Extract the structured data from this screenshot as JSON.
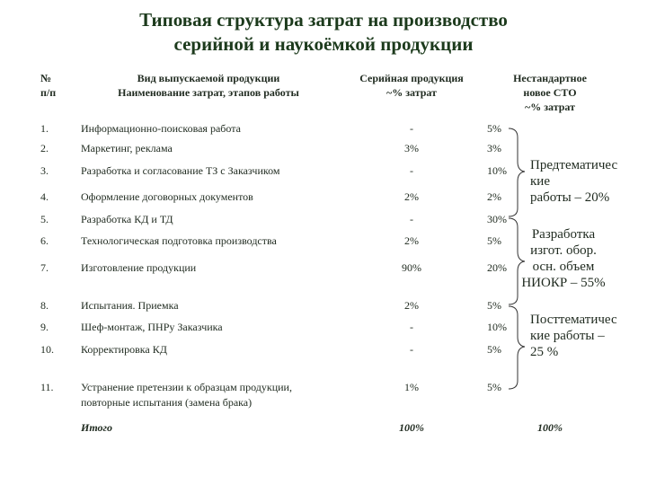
{
  "header": {
    "title": [
      "Типовая структура затрат на производство",
      "серийной и наукоёмкой продукции"
    ]
  },
  "table": {
    "columns": [
      [
        "№",
        "п/п"
      ],
      [
        "Вид выпускаемой продукции",
        "Наименование затрат, этапов работы"
      ],
      [
        "Серийная продукция",
        "~% затрат"
      ],
      [
        "Нестандартное",
        "новое СТО",
        "~% затрат"
      ]
    ],
    "rows": [
      {
        "num": "1.",
        "name": [
          "Информационно-поисковая работа"
        ],
        "serial": "-",
        "custom": "5%"
      },
      {
        "num": "2.",
        "name": [
          "Маркетинг, реклама"
        ],
        "serial": "3%",
        "custom": "3%"
      },
      {
        "num": "3.",
        "name": [
          "Разработка и согласование ТЗ с Заказчиком"
        ],
        "serial": "-",
        "custom": "10%"
      },
      {
        "num": "4.",
        "name": [
          "Оформление договорных документов"
        ],
        "serial": "2%",
        "custom": "2%"
      },
      {
        "num": "5.",
        "name": [
          "Разработка КД и ТД"
        ],
        "serial": "-",
        "custom": "30%"
      },
      {
        "num": "6.",
        "name": [
          "Технологическая подготовка производства"
        ],
        "serial": "2%",
        "custom": "5%"
      },
      {
        "num": "7.",
        "name": [
          "Изготовление продукции"
        ],
        "serial": "90%",
        "custom": "20%"
      },
      {
        "num": "8.",
        "name": [
          "Испытания. Приемка"
        ],
        "serial": "2%",
        "custom": "5%"
      },
      {
        "num": "9.",
        "name": [
          "Шеф-монтаж, ПНРу Заказчика"
        ],
        "serial": "-",
        "custom": "10%"
      },
      {
        "num": "10.",
        "name": [
          "Корректировка КД"
        ],
        "serial": "-",
        "custom": "5%"
      },
      {
        "num": "11.",
        "name": [
          "Устранение претензии к образцам продукции,",
          "повторные испытания (замена брака)"
        ],
        "serial": "1%",
        "custom": "5%"
      }
    ],
    "total": {
      "name": "Итого",
      "serial": "100%",
      "custom": "100%"
    }
  },
  "annotations": [
    [
      "Предтематичес",
      "кие",
      "работы – 20%"
    ],
    [
      "Разработка",
      "изгот. обор.",
      "осн. объем",
      "НИОКР – 55%"
    ],
    [
      "Посттематичес",
      "кие работы –",
      "25 %"
    ]
  ]
}
